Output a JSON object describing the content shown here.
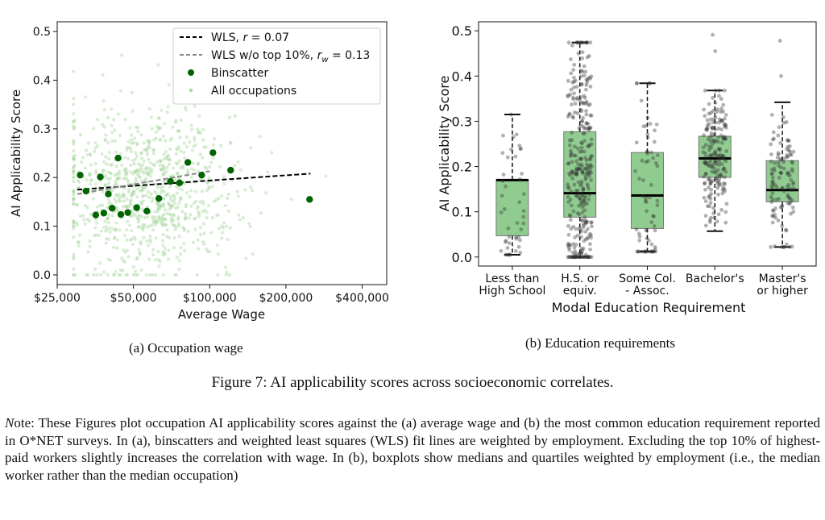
{
  "chart_data": [
    {
      "type": "scatter",
      "xlabel": "Average Wage",
      "ylabel": "AI Applicability Score",
      "xscale": "log",
      "xlim": [
        25000,
        500000
      ],
      "ylim": [
        -0.02,
        0.52
      ],
      "xticks": [
        25000,
        50000,
        100000,
        200000,
        400000
      ],
      "xtick_labels": [
        "$25,000",
        "$50,000",
        "$100,000",
        "$200,000",
        "$400,000"
      ],
      "yticks": [
        0.0,
        0.1,
        0.2,
        0.3,
        0.4,
        0.5
      ],
      "ytick_labels": [
        "0.0",
        "0.1",
        "0.2",
        "0.3",
        "0.4",
        "0.5"
      ],
      "legend_position": "top-right",
      "legend": [
        {
          "label": "WLS, r = 0.07",
          "style": "black dashed line"
        },
        {
          "label": "WLS w/o top 10%, r_w = 0.13",
          "style": "gray dashed line"
        },
        {
          "label": "Binscatter",
          "style": "dark green dot"
        },
        {
          "label": "All occupations",
          "style": "light green dot"
        }
      ],
      "legend_text": {
        "wls_pre": "WLS, ",
        "wls_var": "r",
        "wls_post": " = 0.07",
        "wls10_pre": "WLS w/o top 10%, ",
        "wls10_var": "r",
        "wls10_sub": "w",
        "wls10_post": " = 0.13",
        "bins": "Binscatter",
        "all": "All occupations"
      },
      "series": [
        {
          "name": "Binscatter",
          "color": "#006400",
          "points": [
            [
              30800,
              0.205
            ],
            [
              32500,
              0.172
            ],
            [
              35500,
              0.123
            ],
            [
              37000,
              0.201
            ],
            [
              38200,
              0.127
            ],
            [
              39800,
              0.166
            ],
            [
              41200,
              0.137
            ],
            [
              43500,
              0.24
            ],
            [
              44600,
              0.124
            ],
            [
              47500,
              0.128
            ],
            [
              51500,
              0.138
            ],
            [
              56500,
              0.131
            ],
            [
              63000,
              0.157
            ],
            [
              70000,
              0.192
            ],
            [
              76000,
              0.189
            ],
            [
              82000,
              0.231
            ],
            [
              93000,
              0.205
            ],
            [
              103000,
              0.251
            ],
            [
              121000,
              0.215
            ],
            [
              248000,
              0.155
            ]
          ]
        },
        {
          "name": "WLS, r = 0.07",
          "color": "#000000",
          "line": [
            [
              30000,
              0.175
            ],
            [
              250000,
              0.208
            ]
          ]
        },
        {
          "name": "WLS w/o top 10%",
          "color": "#888888",
          "line": [
            [
              30000,
              0.166
            ],
            [
              100000,
              0.213
            ]
          ]
        },
        {
          "name": "All occupations",
          "color": "#a8d8a0",
          "n_points": 900
        }
      ]
    },
    {
      "type": "box",
      "xlabel": "Modal Education Requirement",
      "ylabel": "AI Applicability Score",
      "ylim": [
        -0.02,
        0.52
      ],
      "yticks": [
        0.0,
        0.1,
        0.2,
        0.3,
        0.4,
        0.5
      ],
      "ytick_labels": [
        "0.0",
        "0.1",
        "0.2",
        "0.3",
        "0.4",
        "0.5"
      ],
      "box_color": "#90cc90",
      "categories": [
        [
          "Less than",
          "High School"
        ],
        [
          "H.S. or",
          "equiv."
        ],
        [
          "Some Col.",
          "- Assoc."
        ],
        [
          "Bachelor's"
        ],
        [
          "Master's",
          "or higher"
        ]
      ],
      "boxes": [
        {
          "min": 0.005,
          "q1": 0.047,
          "median": 0.17,
          "q3": 0.171,
          "max": 0.315,
          "n_points": 45
        },
        {
          "min": 0.0,
          "q1": 0.088,
          "median": 0.141,
          "q3": 0.277,
          "max": 0.474,
          "n_points": 320
        },
        {
          "min": 0.012,
          "q1": 0.063,
          "median": 0.136,
          "q3": 0.231,
          "max": 0.384,
          "n_points": 70
        },
        {
          "min": 0.057,
          "q1": 0.176,
          "median": 0.218,
          "q3": 0.267,
          "max": 0.368,
          "n_points": 190
        },
        {
          "min": 0.022,
          "q1": 0.122,
          "median": 0.148,
          "q3": 0.213,
          "max": 0.342,
          "n_points": 115
        }
      ],
      "outliers": [
        [
          4,
          0.491
        ],
        [
          4,
          0.455
        ],
        [
          5,
          0.478
        ],
        [
          5,
          0.4
        ]
      ]
    }
  ],
  "subcaptions": {
    "a": "(a) Occupation wage",
    "b": "(b) Education requirements"
  },
  "caption": "Figure 7: AI applicability scores across socioeconomic correlates.",
  "note": {
    "lead_italic": "N",
    "lead_rest": "ote:",
    "body": "These Figures plot occupation AI applicability scores against the (a) average wage and (b) the most common education requirement reported in O*NET surveys. In (a), binscatters and weighted least squares (WLS) fit lines are weighted by employment. Excluding the top 10% of highest-paid workers slightly increases the correlation with wage. In (b), boxplots show medians and quartiles weighted by employment (i.e., the median worker rather than the median occupation)"
  }
}
